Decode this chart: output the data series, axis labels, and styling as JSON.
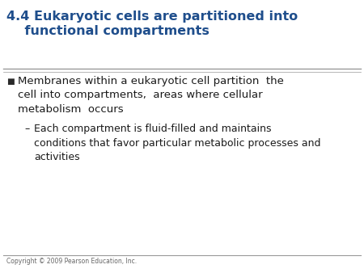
{
  "title_line1": "4.4 Eukaryotic cells are partitioned into",
  "title_line2": "    functional compartments",
  "title_color": "#1F4E8C",
  "title_fontsize": 11.5,
  "divider_color": "#999999",
  "bullet_text": "Membranes within a eukaryotic cell partition  the\ncell into compartments,  areas where cellular\nmetabolism  occurs",
  "bullet_color": "#1a1a1a",
  "bullet_fontsize": 9.5,
  "bullet_marker": "■",
  "bullet_marker_color": "#2a2a2a",
  "sub_bullet_line1": "Each compartment is fluid-filled and maintains",
  "sub_bullet_line2": "conditions that favor particular metabolic processes and",
  "sub_bullet_line3": "activities",
  "sub_bullet_fontsize": 9.0,
  "sub_bullet_color": "#1a1a1a",
  "sub_bullet_dash": "–",
  "copyright_text": "Copyright © 2009 Pearson Education, Inc.",
  "copyright_fontsize": 5.5,
  "copyright_color": "#666666",
  "background_color": "#ffffff"
}
